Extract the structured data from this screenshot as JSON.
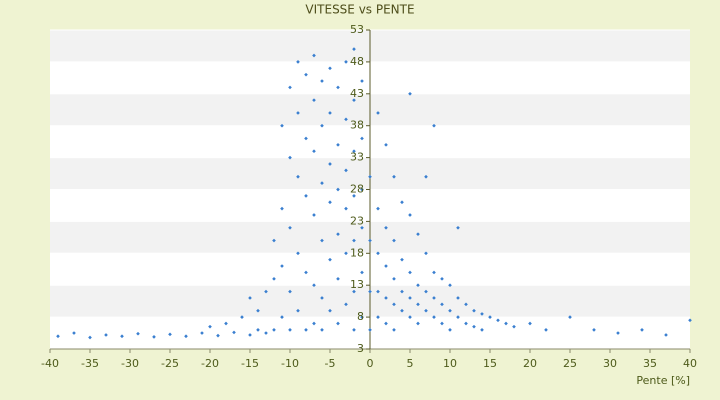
{
  "chart_data": {
    "type": "scatter",
    "title": "VITESSE vs PENTE",
    "x_label": "Pente [%]",
    "xlim": [
      -40,
      40
    ],
    "xticks": [
      -40,
      -35,
      -30,
      -25,
      -20,
      -15,
      -10,
      -5,
      0,
      5,
      10,
      15,
      20,
      25,
      30,
      35,
      40
    ],
    "ylim": [
      3,
      53
    ],
    "yticks": [
      3,
      8,
      13,
      18,
      23,
      28,
      33,
      38,
      43,
      48,
      53
    ],
    "grid": "bands",
    "series": [
      {
        "color": "#3a7fd0",
        "x": [
          -39,
          -37,
          -35,
          -33,
          -31,
          -29,
          -27,
          -25,
          -23,
          -21,
          -20,
          -19,
          -18,
          -17,
          -16,
          -15,
          -15,
          -14,
          -14,
          -13,
          -13,
          -12,
          -12,
          -12,
          -11,
          -11,
          -11,
          -11,
          -10,
          -10,
          -10,
          -10,
          -10,
          -9,
          -9,
          -9,
          -9,
          -9,
          -8,
          -8,
          -8,
          -8,
          -8,
          -7,
          -7,
          -7,
          -7,
          -7,
          -7,
          -6,
          -6,
          -6,
          -6,
          -6,
          -6,
          -5,
          -5,
          -5,
          -5,
          -5,
          -5,
          -4,
          -4,
          -4,
          -4,
          -4,
          -4,
          -3,
          -3,
          -3,
          -3,
          -3,
          -3,
          -2,
          -2,
          -2,
          -2,
          -2,
          -2,
          -2,
          -1,
          -1,
          -1,
          -1,
          -1,
          -1,
          0,
          0,
          0,
          0,
          1,
          1,
          1,
          1,
          1,
          2,
          2,
          2,
          2,
          2,
          3,
          3,
          3,
          3,
          3,
          4,
          4,
          4,
          4,
          5,
          5,
          5,
          5,
          5,
          6,
          6,
          6,
          6,
          7,
          7,
          7,
          7,
          8,
          8,
          8,
          8,
          9,
          9,
          9,
          10,
          10,
          10,
          11,
          11,
          11,
          12,
          12,
          13,
          13,
          14,
          14,
          15,
          16,
          17,
          18,
          20,
          22,
          25,
          28,
          31,
          34,
          37,
          40
        ],
        "values": [
          5,
          5.5,
          4.8,
          5.2,
          5,
          5.4,
          4.9,
          5.3,
          5,
          5.5,
          6.5,
          5.1,
          7,
          5.6,
          8,
          11,
          5.2,
          9,
          6,
          12,
          5.5,
          14,
          20,
          6,
          38,
          25,
          16,
          8,
          44,
          33,
          22,
          12,
          6,
          48,
          40,
          30,
          18,
          9,
          46,
          36,
          27,
          15,
          6,
          49,
          42,
          34,
          24,
          13,
          7,
          45,
          38,
          29,
          20,
          11,
          6,
          47,
          40,
          32,
          26,
          17,
          9,
          44,
          35,
          28,
          21,
          14,
          7,
          48,
          39,
          31,
          25,
          18,
          10,
          50,
          42,
          34,
          27,
          20,
          12,
          6,
          45,
          36,
          28,
          22,
          15,
          8,
          30,
          20,
          12,
          6,
          40,
          25,
          18,
          12,
          8,
          35,
          22,
          16,
          11,
          7,
          30,
          20,
          14,
          10,
          6,
          26,
          17,
          12,
          9,
          43,
          24,
          15,
          11,
          8,
          21,
          13,
          10,
          7,
          30,
          18,
          12,
          9,
          38,
          15,
          11,
          8,
          14,
          10,
          7,
          13,
          9,
          6,
          22,
          11,
          8,
          10,
          7,
          9,
          6.5,
          8.5,
          6,
          8,
          7.5,
          7,
          6.5,
          7,
          6,
          8,
          6,
          5.5,
          6,
          5.2,
          7.5
        ]
      }
    ]
  }
}
